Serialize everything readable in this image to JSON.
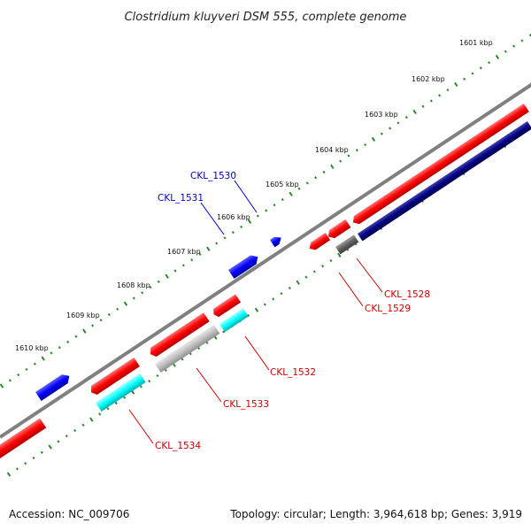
{
  "title": "Clostridium kluyveri DSM 555, complete genome",
  "footer": {
    "accession": "Accession: NC_009706",
    "topology": "Topology: circular; Length: 3,964,618 bp; Genes: 3,919"
  },
  "colors": {
    "backbone": "#808080",
    "red_feature": "#ff0000",
    "blue_feature": "#0000ff",
    "navy_feature": "#000080",
    "cyan_feature": "#00ffff",
    "gray_feature": "#606060",
    "lightgray_feature": "#c0c0c0",
    "tick": "#2a8a2a",
    "label_red": "#cc0000",
    "label_blue": "#0000cc"
  },
  "scale_labels": [
    "1601 kbp",
    "1602 kbp",
    "1603 kbp",
    "1604 kbp",
    "1605 kbp",
    "1606 kbp",
    "1607 kbp",
    "1608 kbp",
    "1609 kbp",
    "1610 kbp"
  ],
  "gene_labels": [
    {
      "text": "CKL_1530",
      "color": "label_blue"
    },
    {
      "text": "CKL_1531",
      "color": "label_blue"
    },
    {
      "text": "CKL_1528",
      "color": "label_red"
    },
    {
      "text": "CKL_1529",
      "color": "label_red"
    },
    {
      "text": "CKL_1532",
      "color": "label_red"
    },
    {
      "text": "CKL_1533",
      "color": "label_red"
    },
    {
      "text": "CKL_1534",
      "color": "label_red"
    }
  ]
}
